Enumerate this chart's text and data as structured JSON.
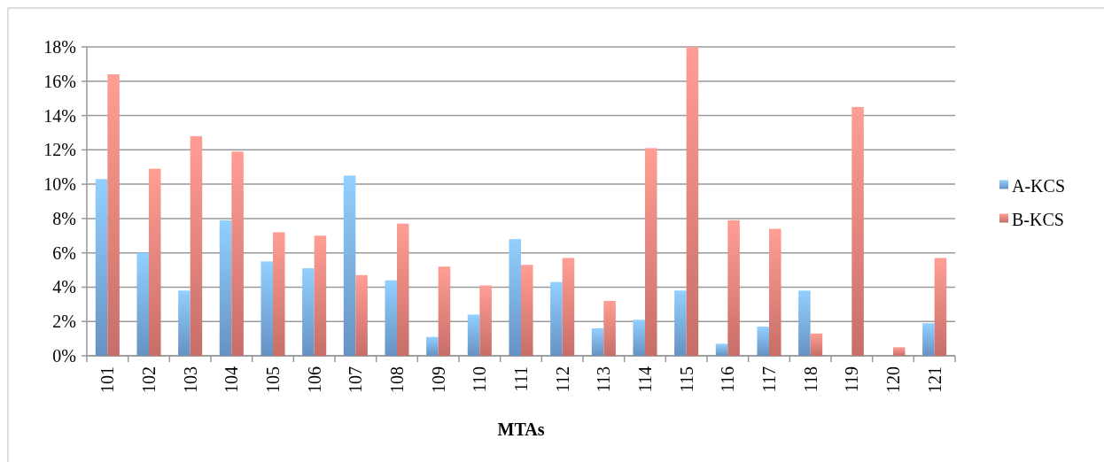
{
  "chart_data": {
    "type": "bar",
    "xlabel": "MTAs",
    "categories": [
      "101",
      "102",
      "103",
      "104",
      "105",
      "106",
      "107",
      "108",
      "109",
      "110",
      "111",
      "112",
      "113",
      "114",
      "115",
      "116",
      "117",
      "118",
      "119",
      "120",
      "121"
    ],
    "series": [
      {
        "name": "A-KCS",
        "color": "#7aaee8",
        "values": [
          10.3,
          6.0,
          3.8,
          7.9,
          5.5,
          5.1,
          10.5,
          4.4,
          1.1,
          2.4,
          6.8,
          4.3,
          1.6,
          2.1,
          3.8,
          0.7,
          1.7,
          3.8,
          0,
          0,
          1.9
        ]
      },
      {
        "name": "B-KCS",
        "color": "#ee847c",
        "values": [
          16.4,
          10.9,
          12.8,
          11.9,
          7.2,
          7.0,
          4.7,
          7.7,
          5.2,
          4.1,
          5.3,
          5.7,
          3.2,
          12.1,
          18.0,
          7.9,
          7.4,
          1.3,
          14.5,
          0.5,
          5.7
        ]
      }
    ],
    "ylim": [
      0,
      18
    ],
    "yticks": [
      {
        "value": 0,
        "label": "0%"
      },
      {
        "value": 2,
        "label": "2%"
      },
      {
        "value": 4,
        "label": "4%"
      },
      {
        "value": 6,
        "label": "6%"
      },
      {
        "value": 8,
        "label": "8%"
      },
      {
        "value": 10,
        "label": "10%"
      },
      {
        "value": 12,
        "label": "12%"
      },
      {
        "value": 14,
        "label": "14%"
      },
      {
        "value": 16,
        "label": "16%"
      },
      {
        "value": 18,
        "label": "18%"
      }
    ],
    "grid": "y",
    "legend": "right"
  }
}
